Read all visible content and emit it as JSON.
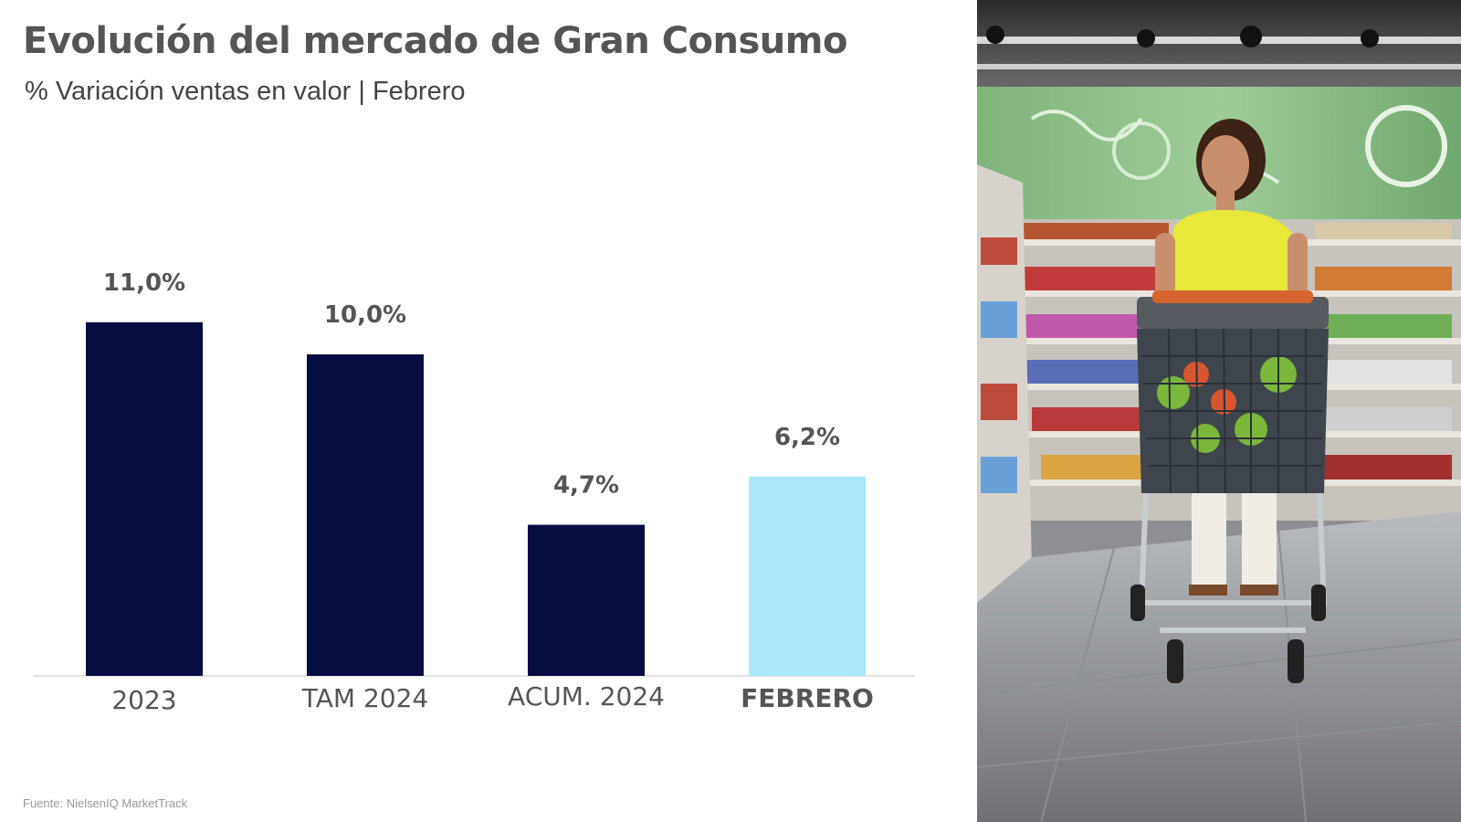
{
  "title": "Evolución del mercado de Gran Consumo",
  "subtitle": "% Variación ventas en valor | Febrero",
  "source": "Fuente: NielsenIQ MarketTrack",
  "chart_data": {
    "type": "bar",
    "categories": [
      "2023",
      "TAM 2024",
      "ACUM. 2024",
      "FEBRERO"
    ],
    "values": [
      11.0,
      10.0,
      4.7,
      6.2
    ],
    "value_labels": [
      "11,0%",
      "10,0%",
      "4,7%",
      "6,2%"
    ],
    "title": "Evolución del mercado de Gran Consumo",
    "subtitle": "% Variación ventas en valor | Febrero",
    "highlight_category": "FEBRERO",
    "colors": {
      "default": "#070c42",
      "highlight": "#abe8fb"
    },
    "ylim": [
      0,
      13
    ],
    "grid": false,
    "legend": "none"
  },
  "photo": {
    "description_icon": "supermarket-shopper-photo"
  }
}
